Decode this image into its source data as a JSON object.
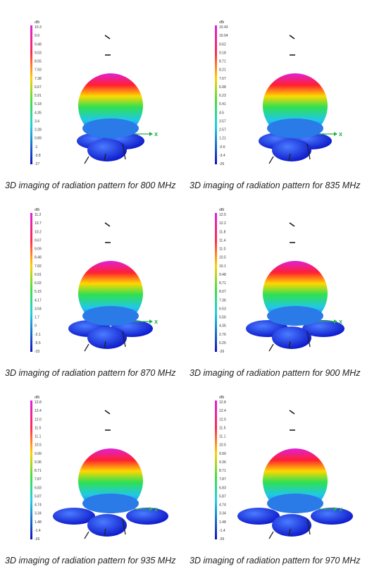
{
  "panels": [
    {
      "caption": "3D imaging of radiation pattern for 800 MHz",
      "axis_label": "x",
      "colorbar": {
        "unit": "dBi",
        "labels": [
          "10.3",
          "9.9",
          "9.48",
          "9.03",
          "8.55",
          "7.93",
          "7.38",
          "6.67",
          "5.91",
          "5.18",
          "4.35",
          "3.4",
          "2.28",
          "0.89",
          "-1",
          "-3.8",
          "-27"
        ]
      }
    },
    {
      "caption": "3D imaging of radiation pattern for 835 MHz",
      "axis_label": "x",
      "colorbar": {
        "unit": "dBi",
        "labels": [
          "10.43",
          "10.04",
          "9.62",
          "9.18",
          "8.71",
          "8.21",
          "7.67",
          "6.98",
          "6.23",
          "5.41",
          "4.5",
          "3.57",
          "2.57",
          "1.21",
          "-0.6",
          "-3.4",
          "-26"
        ]
      }
    },
    {
      "caption": "3D imaging of radiation pattern for 870 MHz",
      "axis_label": "x",
      "colorbar": {
        "unit": "dBi",
        "labels": [
          "11.2",
          "10.7",
          "10.2",
          "9.67",
          "9.09",
          "8.48",
          "7.82",
          "6.91",
          "6.02",
          "5.15",
          "4.17",
          "3.04",
          "1.7",
          "0",
          "-2.1",
          "-5.5",
          "-33"
        ]
      }
    },
    {
      "caption": "3D imaging of radiation pattern for 900 MHz",
      "axis_label": "x",
      "colorbar": {
        "unit": "dBi",
        "labels": [
          "12.5",
          "12.2",
          "11.8",
          "11.4",
          "11.0",
          "10.5",
          "10.1",
          "9.48",
          "8.71",
          "8.07",
          "7.36",
          "6.53",
          "5.56",
          "4.35",
          "2.76",
          "0.25",
          "-26"
        ]
      }
    },
    {
      "caption": "3D imaging of radiation pattern for 935 MHz",
      "axis_label": "x",
      "colorbar": {
        "unit": "dBi",
        "labels": [
          "12.8",
          "12.4",
          "12.0",
          "11.5",
          "11.1",
          "10.5",
          "9.99",
          "9.36",
          "8.71",
          "7.87",
          "6.83",
          "5.87",
          "4.74",
          "3.34",
          "1.48",
          "-1.4",
          "-26"
        ]
      }
    },
    {
      "caption": "3D imaging of radiation pattern for 970 MHz",
      "axis_label": "x",
      "colorbar": {
        "unit": "dBi",
        "labels": [
          "12.8",
          "12.4",
          "12.0",
          "11.5",
          "11.1",
          "10.5",
          "9.99",
          "9.36",
          "8.71",
          "7.87",
          "6.83",
          "5.87",
          "4.74",
          "3.34",
          "1.48",
          "-1.4",
          "-26"
        ]
      }
    }
  ]
}
